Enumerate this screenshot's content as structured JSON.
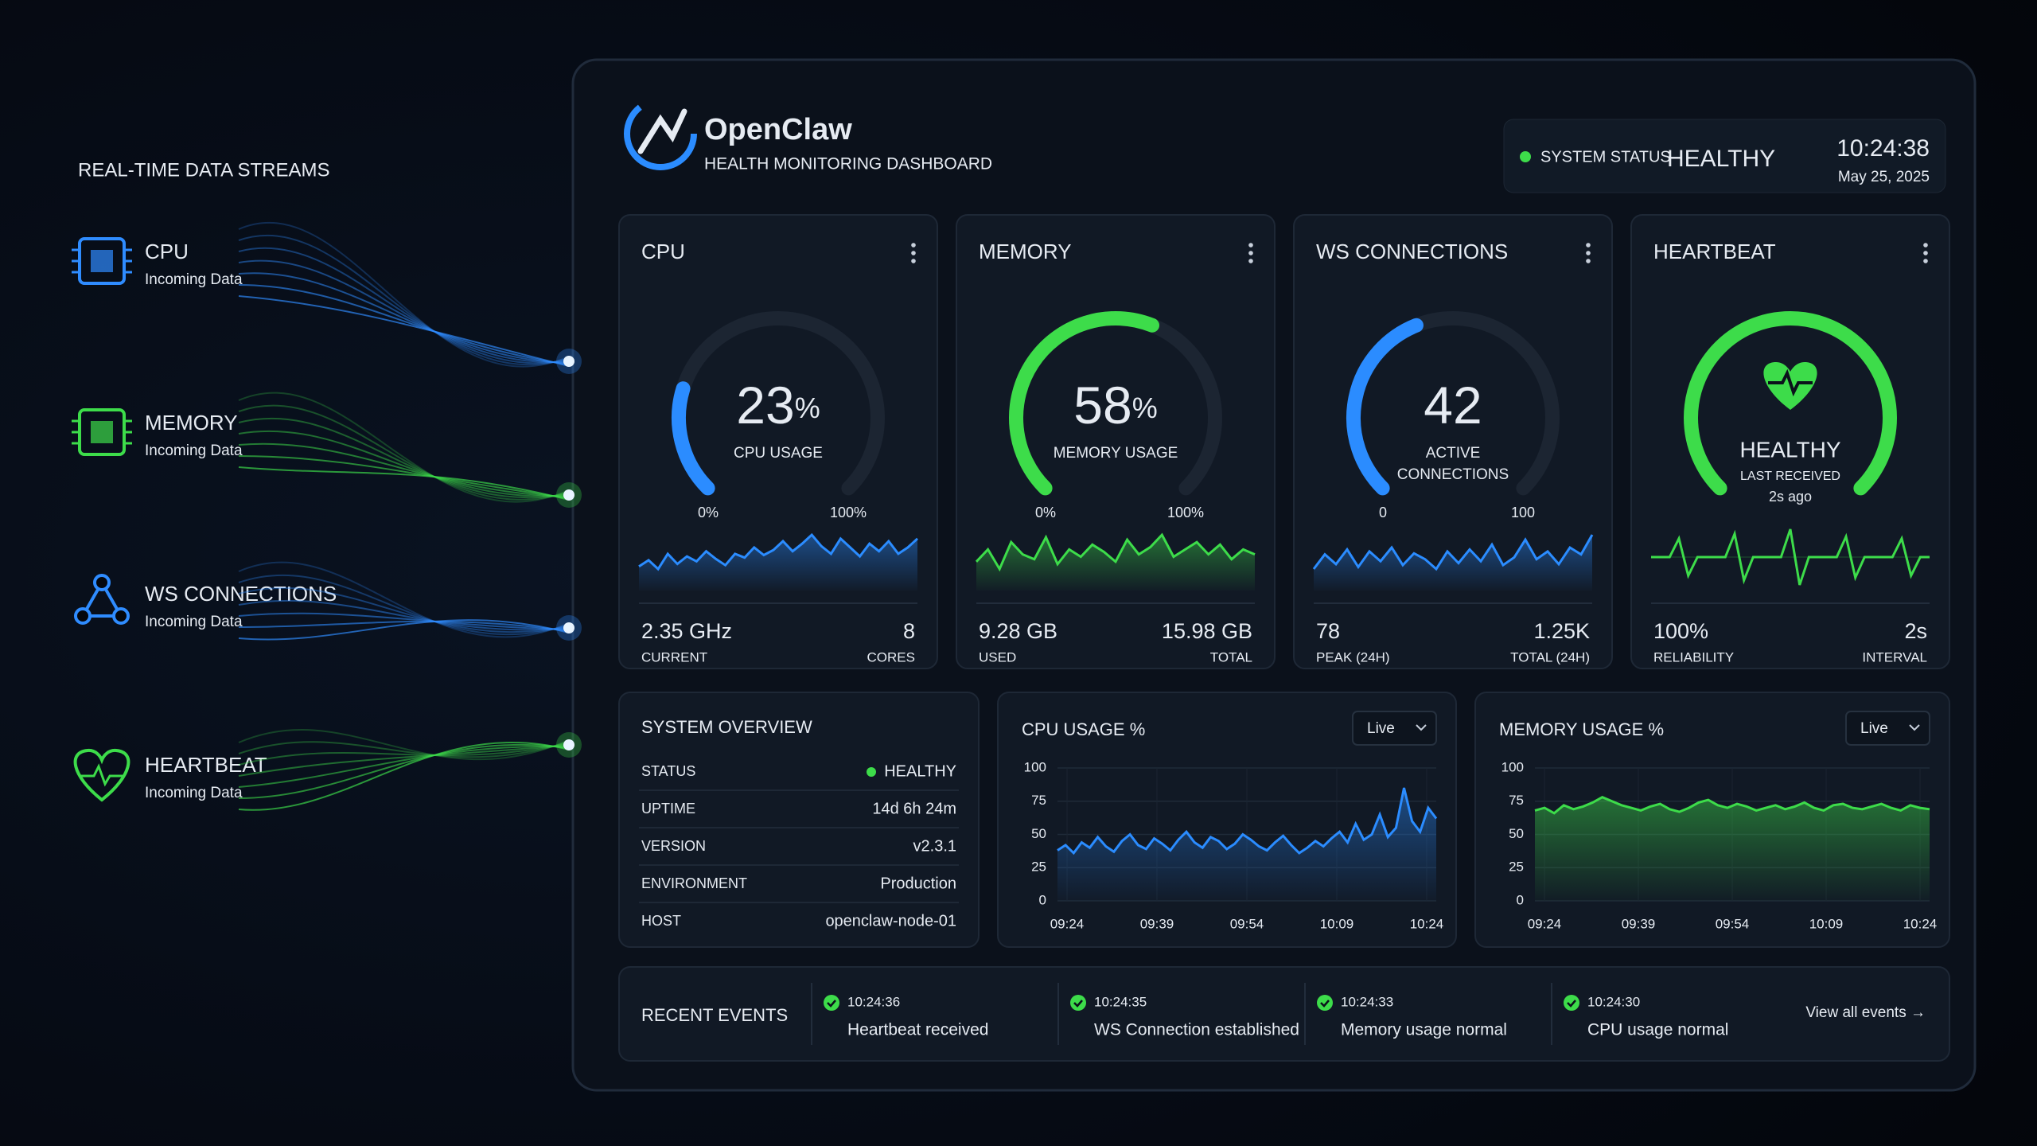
{
  "streams": {
    "title": "REAL-TIME DATA STREAMS",
    "items": [
      {
        "name": "CPU",
        "sub": "Incoming Data",
        "color": "#2f8cff"
      },
      {
        "name": "MEMORY",
        "sub": "Incoming Data",
        "color": "#3ddc4a"
      },
      {
        "name": "WS CONNECTIONS",
        "sub": "Incoming Data",
        "color": "#2f8cff"
      },
      {
        "name": "HEARTBEAT",
        "sub": "Incoming Data",
        "color": "#3ddc4a"
      }
    ]
  },
  "header": {
    "brand": "OpenClaw",
    "subtitle": "HEALTH MONITORING DASHBOARD",
    "status_label": "SYSTEM STATUS",
    "status": "HEALTHY",
    "time": "10:24:38",
    "date": "May 25, 2025"
  },
  "cards": [
    {
      "title": "CPU",
      "type": "gauge",
      "value": 23,
      "unit": "%",
      "label": [
        "CPU USAGE"
      ],
      "gauge_min": {
        "value": 0,
        "label": "0%"
      },
      "gauge_max": {
        "value": 100,
        "label": "100%"
      },
      "color": "#2b8cff",
      "spark": [
        40,
        45,
        38,
        50,
        42,
        48,
        44,
        52,
        46,
        41,
        50,
        47,
        55,
        49,
        53,
        60,
        52,
        58,
        65,
        56,
        50,
        62,
        55,
        48,
        58,
        52,
        60,
        50,
        55,
        62
      ],
      "stats": [
        {
          "value": "2.35 GHz",
          "label": "CURRENT"
        },
        {
          "value": 8,
          "label": "CORES"
        }
      ]
    },
    {
      "title": "MEMORY",
      "type": "gauge",
      "value": 58,
      "unit": "%",
      "label": [
        "MEMORY USAGE"
      ],
      "gauge_min": {
        "value": 0,
        "label": "0%"
      },
      "gauge_max": {
        "value": 100,
        "label": "100%"
      },
      "color": "#3ddc4a",
      "spark": [
        55,
        60,
        52,
        63,
        58,
        56,
        65,
        54,
        60,
        57,
        62,
        59,
        55,
        64,
        58,
        61,
        66,
        57,
        60,
        63,
        58,
        62,
        56,
        60,
        58
      ],
      "stats": [
        {
          "value": "9.28 GB",
          "label": "USED"
        },
        {
          "value": "15.98 GB",
          "label": "TOTAL"
        }
      ]
    },
    {
      "title": "WS CONNECTIONS",
      "type": "gauge",
      "value": 42,
      "label": [
        "ACTIVE",
        "CONNECTIONS"
      ],
      "gauge_min": 0,
      "gauge_max": 100,
      "color": "#2b8cff",
      "spark": [
        40,
        55,
        45,
        60,
        42,
        58,
        48,
        62,
        44,
        56,
        50,
        40,
        58,
        46,
        60,
        48,
        65,
        44,
        52,
        70,
        50,
        58,
        45,
        62,
        55,
        75
      ],
      "stats": [
        {
          "value": 78,
          "label": "PEAK (24H)"
        },
        {
          "value": "1.25K",
          "label": "TOTAL (24H)"
        }
      ]
    },
    {
      "title": "HEARTBEAT",
      "type": "heartbeat",
      "status": "HEALTHY",
      "label": "LAST RECEIVED",
      "ago": "2s ago",
      "color": "#3ddc4a",
      "spark": [
        50,
        50,
        50,
        70,
        30,
        50,
        50,
        50,
        50,
        75,
        25,
        50,
        50,
        50,
        50,
        80,
        20,
        50,
        50,
        50,
        50,
        72,
        28,
        50,
        50,
        50,
        50,
        70,
        30,
        50,
        50
      ],
      "stats": [
        {
          "value": "100%",
          "label": "RELIABILITY"
        },
        {
          "value": "2s",
          "label": "INTERVAL"
        }
      ]
    }
  ],
  "overview": {
    "title": "SYSTEM OVERVIEW",
    "rows": [
      [
        "STATUS",
        "HEALTHY"
      ],
      [
        "UPTIME",
        "14d 6h 24m"
      ],
      [
        "VERSION",
        "v2.3.1"
      ],
      [
        "ENVIRONMENT",
        "Production"
      ],
      [
        "HOST",
        "openclaw-node-01"
      ]
    ]
  },
  "charts": [
    {
      "type": "line",
      "title": "CPU USAGE %",
      "control": "Live",
      "color": "#2b8cff",
      "ylim": [
        0,
        100
      ],
      "yticks": [
        0,
        25,
        50,
        75,
        100
      ],
      "xticks": [
        "09:24",
        "09:39",
        "09:54",
        "10:09",
        "10:24"
      ],
      "values": [
        38,
        42,
        36,
        44,
        40,
        48,
        41,
        37,
        45,
        50,
        42,
        39,
        47,
        43,
        38,
        46,
        52,
        44,
        40,
        48,
        45,
        39,
        43,
        50,
        46,
        41,
        38,
        44,
        49,
        42,
        36,
        40,
        45,
        41,
        47,
        52,
        44,
        58,
        46,
        50,
        65,
        48,
        55,
        85,
        60,
        52,
        70,
        62
      ]
    },
    {
      "type": "line",
      "title": "MEMORY USAGE %",
      "control": "Live",
      "color": "#3ddc4a",
      "ylim": [
        0,
        100
      ],
      "yticks": [
        0,
        25,
        50,
        75,
        100
      ],
      "xticks": [
        "09:24",
        "09:39",
        "09:54",
        "10:09",
        "10:24"
      ],
      "values": [
        68,
        70,
        66,
        72,
        69,
        71,
        74,
        78,
        75,
        72,
        70,
        68,
        71,
        73,
        69,
        67,
        70,
        74,
        76,
        72,
        70,
        73,
        71,
        68,
        70,
        72,
        69,
        71,
        74,
        70,
        68,
        72,
        73,
        70,
        69,
        71,
        73,
        70,
        68,
        72,
        70,
        69
      ]
    }
  ],
  "events": {
    "title": "RECENT EVENTS",
    "items": [
      {
        "time": "10:24:36",
        "text": "Heartbeat received"
      },
      {
        "time": "10:24:35",
        "text": "WS Connection established"
      },
      {
        "time": "10:24:33",
        "text": "Memory usage normal"
      },
      {
        "time": "10:24:30",
        "text": "CPU usage normal"
      }
    ],
    "link": "View all events →"
  }
}
